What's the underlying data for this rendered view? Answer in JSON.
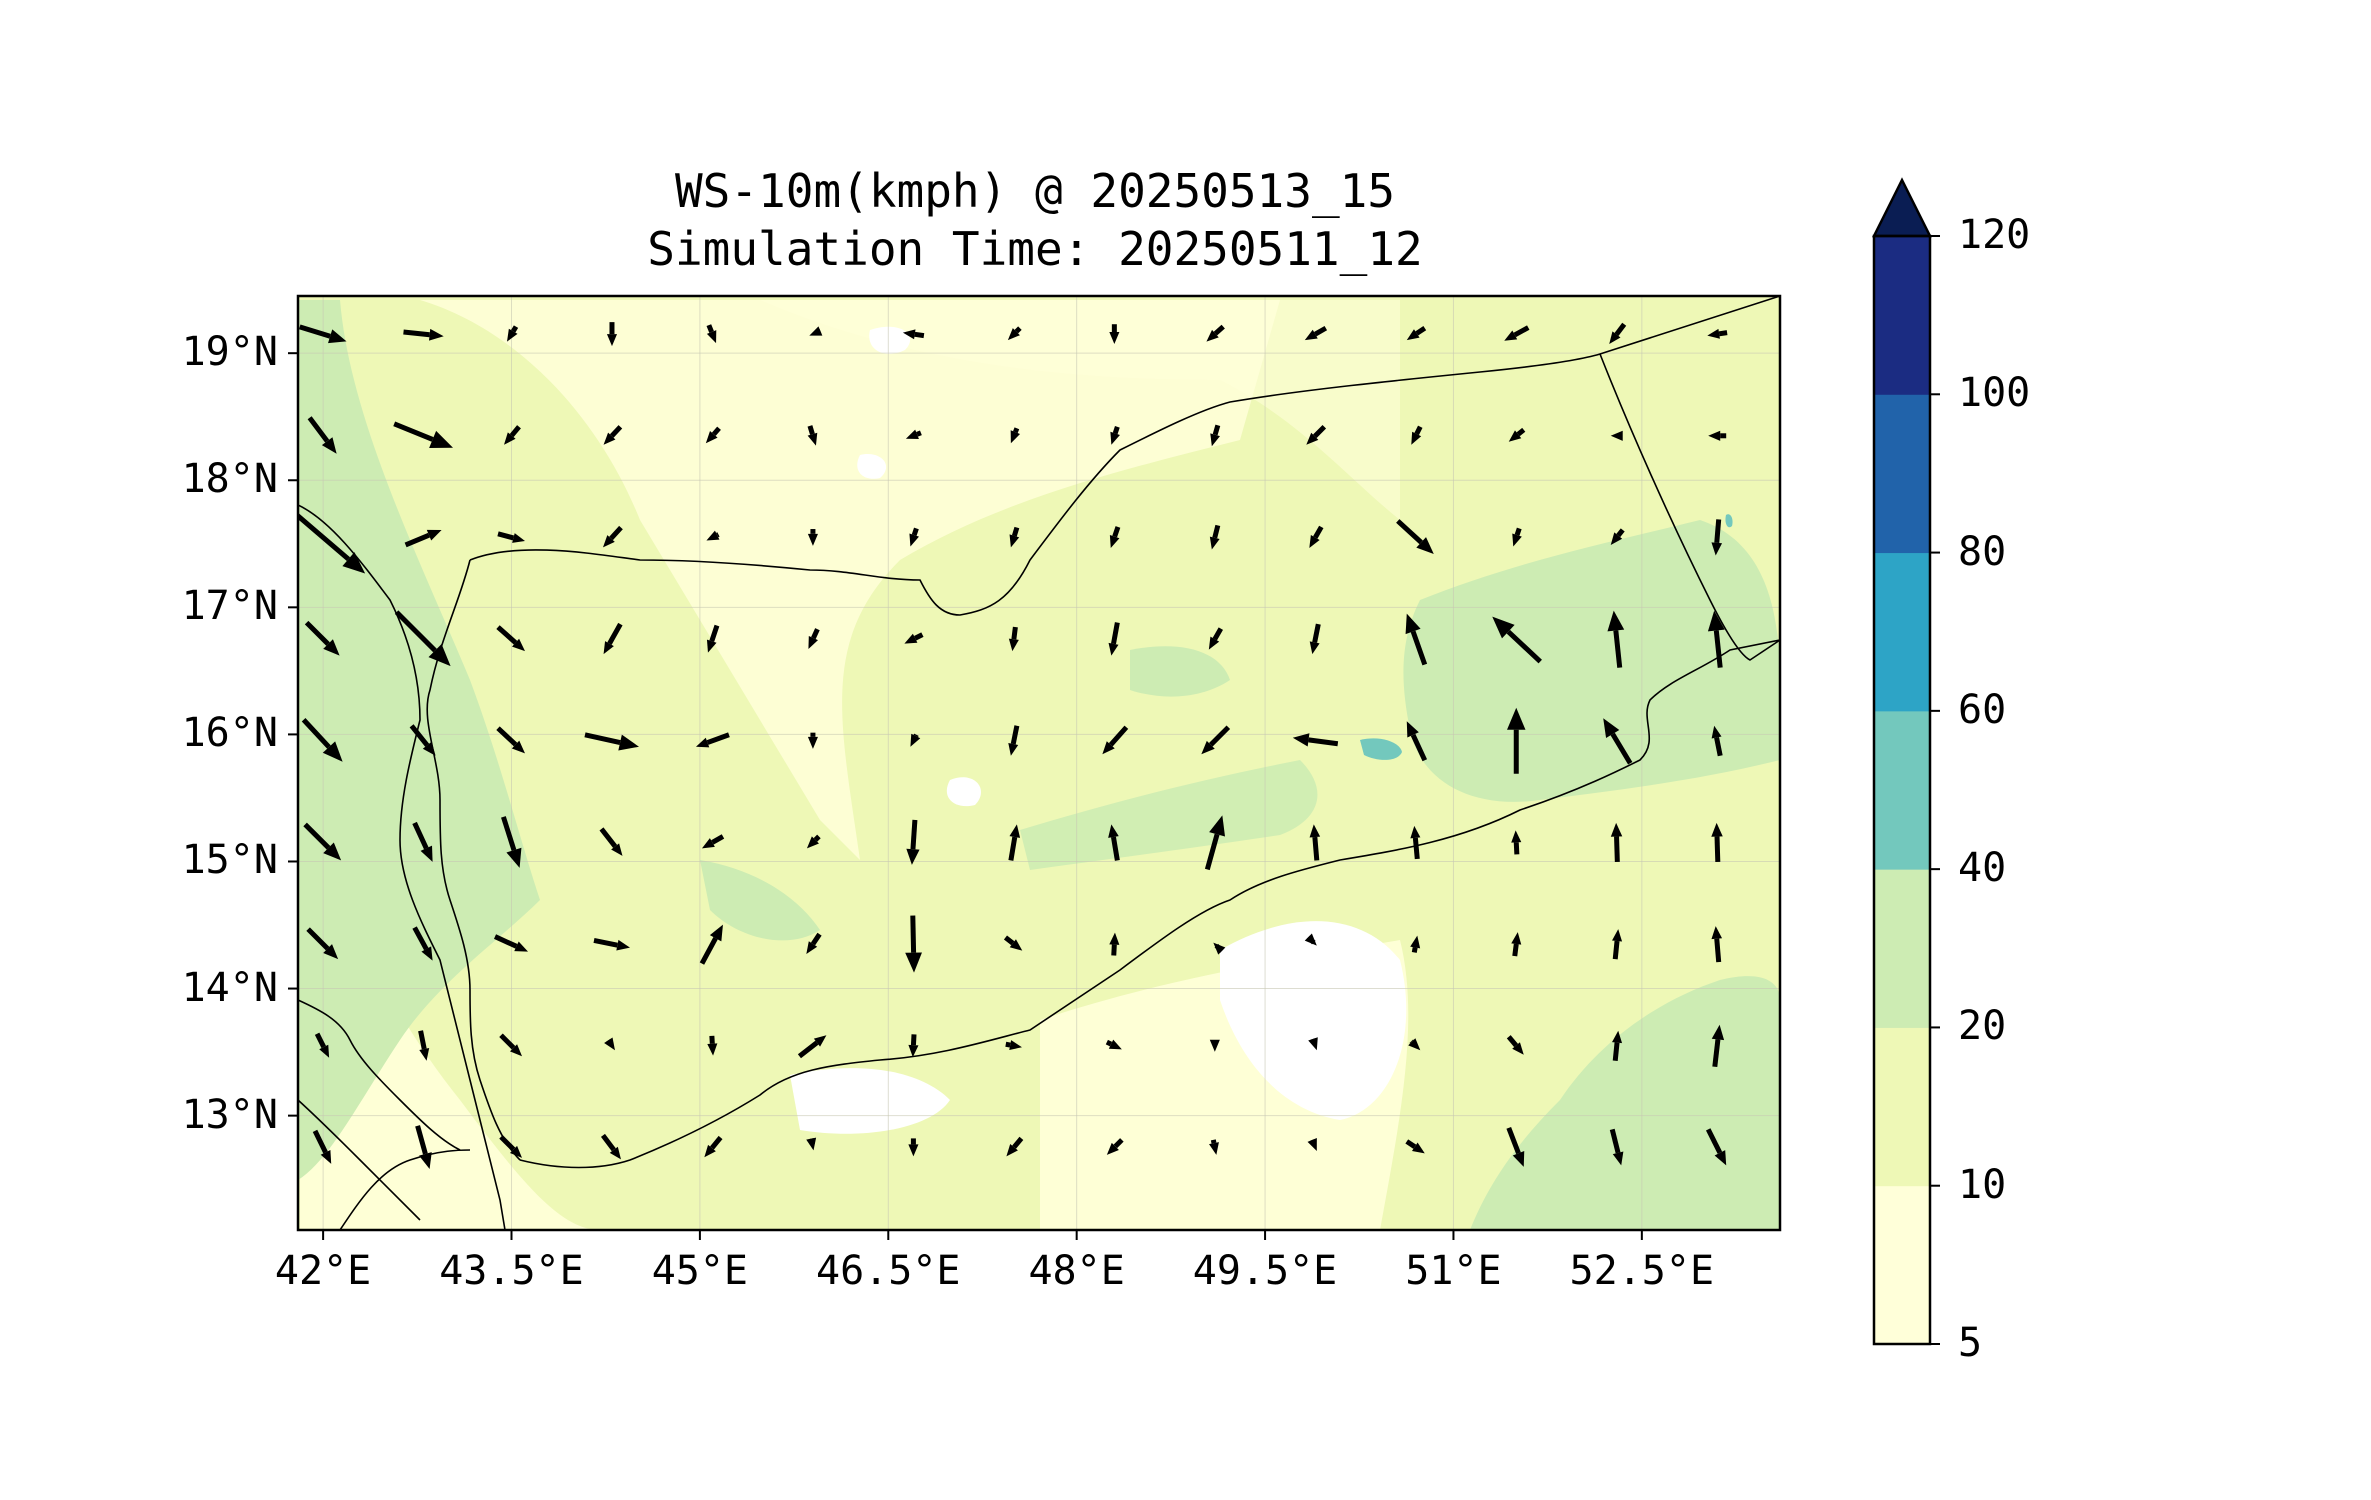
{
  "title": {
    "line1": "WS-10m(kmph) @ 20250513_15",
    "line2": "Simulation Time: 20250511_12"
  },
  "map": {
    "lon_range": [
      41.8,
      53.6
    ],
    "lat_range": [
      12.1,
      19.45
    ],
    "x_ticks": [
      {
        "value": 42.0,
        "label": "42°E"
      },
      {
        "value": 43.5,
        "label": "43.5°E"
      },
      {
        "value": 45.0,
        "label": "45°E"
      },
      {
        "value": 46.5,
        "label": "46.5°E"
      },
      {
        "value": 48.0,
        "label": "48°E"
      },
      {
        "value": 49.5,
        "label": "49.5°E"
      },
      {
        "value": 51.0,
        "label": "51°E"
      },
      {
        "value": 52.5,
        "label": "52.5°E"
      }
    ],
    "y_ticks": [
      {
        "value": 19.0,
        "label": "19°N"
      },
      {
        "value": 18.0,
        "label": "18°N"
      },
      {
        "value": 17.0,
        "label": "17°N"
      },
      {
        "value": 16.0,
        "label": "16°N"
      },
      {
        "value": 15.0,
        "label": "15°N"
      },
      {
        "value": 14.0,
        "label": "14°N"
      },
      {
        "value": 13.0,
        "label": "13°N"
      }
    ],
    "gridlines": true
  },
  "colorbar": {
    "levels": [
      {
        "value": 5,
        "label": "5"
      },
      {
        "value": 10,
        "label": "10"
      },
      {
        "value": 20,
        "label": "20"
      },
      {
        "value": 40,
        "label": "40"
      },
      {
        "value": 60,
        "label": "60"
      },
      {
        "value": 80,
        "label": "80"
      },
      {
        "value": 100,
        "label": "100"
      },
      {
        "value": 120,
        "label": "120"
      }
    ],
    "colors": [
      "#ffffd9",
      "#eef8b6",
      "#cdecb3",
      "#73c8bd",
      "#2da4c6",
      "#2163aa",
      "#1b2c82"
    ],
    "extend_color": "#0a1d53",
    "extend": "max"
  },
  "wind_colors": {
    "white": "#ffffff",
    "pale": "#ffffd9",
    "light": "#eef8b6",
    "green": "#cdecb3",
    "teal": "#73c8bd"
  },
  "wind_vectors": [
    [
      42.0,
      19.15,
      0.78,
      -0.24,
      "#000"
    ],
    [
      42.8,
      19.15,
      0.67,
      -0.07,
      "#000"
    ],
    [
      43.5,
      19.15,
      -0.15,
      -0.25
    ],
    [
      44.3,
      19.15,
      0,
      -0.4
    ],
    [
      45.1,
      19.15,
      0.12,
      -0.3
    ],
    [
      45.9,
      19.15,
      -0.12,
      -0.05
    ],
    [
      46.7,
      19.15,
      -0.35,
      0.05
    ],
    [
      47.5,
      19.15,
      -0.2,
      -0.2
    ],
    [
      48.3,
      19.15,
      0,
      -0.33
    ],
    [
      49.1,
      19.15,
      -0.28,
      -0.25
    ],
    [
      49.9,
      19.15,
      -0.35,
      -0.2
    ],
    [
      50.7,
      19.15,
      -0.3,
      -0.2
    ],
    [
      51.5,
      19.15,
      -0.4,
      -0.22
    ],
    [
      52.3,
      19.15,
      -0.25,
      -0.33
    ],
    [
      53.1,
      19.15,
      -0.33,
      -0.05
    ],
    [
      42.0,
      18.35,
      0.45,
      -0.6
    ],
    [
      42.8,
      18.35,
      0.98,
      -0.4
    ],
    [
      43.5,
      18.35,
      -0.25,
      -0.3
    ],
    [
      44.3,
      18.35,
      -0.28,
      -0.3
    ],
    [
      45.1,
      18.35,
      -0.22,
      -0.25
    ],
    [
      45.9,
      18.35,
      0.1,
      -0.33
    ],
    [
      46.7,
      18.35,
      -0.25,
      -0.1
    ],
    [
      47.5,
      18.35,
      -0.1,
      -0.25
    ],
    [
      48.3,
      18.35,
      -0.1,
      -0.3
    ],
    [
      49.1,
      18.35,
      -0.1,
      -0.35
    ],
    [
      49.9,
      18.35,
      -0.3,
      -0.3
    ],
    [
      50.7,
      18.35,
      -0.15,
      -0.3
    ],
    [
      51.5,
      18.35,
      -0.25,
      -0.2
    ],
    [
      52.3,
      18.35,
      -0.2,
      0.0
    ],
    [
      53.1,
      18.35,
      -0.3,
      0.0
    ],
    [
      42.0,
      17.55,
      1.4,
      -1.2
    ],
    [
      42.8,
      17.55,
      0.6,
      0.25
    ],
    [
      43.5,
      17.55,
      0.45,
      -0.12
    ],
    [
      44.3,
      17.55,
      -0.3,
      -0.33
    ],
    [
      45.1,
      17.55,
      -0.2,
      -0.1
    ],
    [
      45.9,
      17.55,
      0,
      -0.28
    ],
    [
      46.7,
      17.55,
      -0.1,
      -0.3
    ],
    [
      47.5,
      17.55,
      -0.1,
      -0.33
    ],
    [
      48.3,
      17.55,
      -0.12,
      -0.35
    ],
    [
      49.1,
      17.55,
      -0.1,
      -0.4
    ],
    [
      49.9,
      17.55,
      -0.2,
      -0.35
    ],
    [
      50.7,
      17.55,
      0.6,
      -0.55
    ],
    [
      51.5,
      17.55,
      -0.1,
      -0.3
    ],
    [
      52.3,
      17.55,
      -0.2,
      -0.25
    ],
    [
      53.1,
      17.55,
      -0.05,
      -0.6
    ],
    [
      42.0,
      16.75,
      0.55,
      -0.55
    ],
    [
      42.8,
      16.75,
      0.9,
      -0.9
    ],
    [
      43.5,
      16.75,
      0.45,
      -0.4
    ],
    [
      44.3,
      16.75,
      -0.28,
      -0.5
    ],
    [
      45.1,
      16.75,
      -0.15,
      -0.45
    ],
    [
      45.9,
      16.75,
      -0.15,
      -0.33
    ],
    [
      46.7,
      16.75,
      -0.3,
      -0.15
    ],
    [
      47.5,
      16.75,
      -0.05,
      -0.4
    ],
    [
      48.3,
      16.75,
      -0.1,
      -0.55
    ],
    [
      49.1,
      16.75,
      -0.2,
      -0.35
    ],
    [
      49.9,
      16.75,
      -0.1,
      -0.5
    ],
    [
      50.7,
      16.75,
      -0.3,
      0.85
    ],
    [
      51.5,
      16.75,
      -0.8,
      0.75
    ],
    [
      52.3,
      16.75,
      -0.1,
      0.95
    ],
    [
      53.1,
      16.75,
      -0.1,
      0.95
    ],
    [
      42.0,
      15.95,
      0.65,
      -0.7
    ],
    [
      42.8,
      15.95,
      0.4,
      -0.5
    ],
    [
      43.5,
      15.95,
      0.45,
      -0.42
    ],
    [
      44.3,
      15.95,
      0.9,
      -0.2
    ],
    [
      45.1,
      15.95,
      -0.55,
      -0.2
    ],
    [
      45.9,
      15.95,
      0,
      -0.27
    ],
    [
      46.7,
      15.95,
      -0.1,
      -0.2
    ],
    [
      47.5,
      15.95,
      -0.1,
      -0.5
    ],
    [
      48.3,
      15.95,
      -0.4,
      -0.45
    ],
    [
      49.1,
      15.95,
      -0.45,
      -0.45
    ],
    [
      49.9,
      15.95,
      -0.75,
      0.1
    ],
    [
      50.7,
      15.95,
      -0.3,
      0.65
    ],
    [
      51.5,
      15.95,
      0,
      1.1
    ],
    [
      52.3,
      15.95,
      -0.45,
      0.75
    ],
    [
      53.1,
      15.95,
      -0.1,
      0.5
    ],
    [
      42.0,
      15.15,
      0.6,
      -0.6
    ],
    [
      42.8,
      15.15,
      0.3,
      -0.65
    ],
    [
      43.5,
      15.15,
      0.27,
      -0.85
    ],
    [
      44.3,
      15.15,
      0.35,
      -0.45
    ],
    [
      45.1,
      15.15,
      -0.35,
      -0.2
    ],
    [
      45.9,
      15.15,
      -0.2,
      -0.2
    ],
    [
      46.7,
      15.15,
      -0.05,
      -0.75
    ],
    [
      47.5,
      15.15,
      0.1,
      0.6
    ],
    [
      48.3,
      15.15,
      -0.1,
      0.6
    ],
    [
      49.1,
      15.15,
      0.25,
      0.9
    ],
    [
      49.9,
      15.15,
      -0.05,
      0.6
    ],
    [
      50.7,
      15.15,
      -0.05,
      0.55
    ],
    [
      51.5,
      15.15,
      -0.02,
      0.4
    ],
    [
      52.3,
      15.15,
      -0.02,
      0.65
    ],
    [
      53.1,
      15.15,
      -0.02,
      0.65
    ],
    [
      42.0,
      14.35,
      0.5,
      -0.5
    ],
    [
      42.8,
      14.35,
      0.3,
      -0.55
    ],
    [
      43.5,
      14.35,
      0.55,
      -0.25
    ],
    [
      44.3,
      14.35,
      0.6,
      -0.12
    ],
    [
      45.1,
      14.35,
      0.35,
      0.65
    ],
    [
      45.9,
      14.35,
      -0.22,
      -0.33
    ],
    [
      46.7,
      14.35,
      0.02,
      -0.95
    ],
    [
      47.5,
      14.35,
      0.28,
      -0.22
    ],
    [
      48.3,
      14.35,
      0.02,
      0.38
    ],
    [
      49.1,
      14.35,
      -0.05,
      0.05
    ],
    [
      49.9,
      14.35,
      0.05,
      -0.05
    ],
    [
      50.7,
      14.35,
      0.05,
      0.28
    ],
    [
      51.5,
      14.35,
      0.05,
      0.4
    ],
    [
      52.3,
      14.35,
      0.05,
      0.5
    ],
    [
      53.1,
      14.35,
      -0.05,
      0.6
    ],
    [
      42.0,
      13.55,
      0.2,
      -0.4
    ],
    [
      42.8,
      13.55,
      0.1,
      -0.5
    ],
    [
      43.5,
      13.55,
      0.35,
      -0.35
    ],
    [
      44.3,
      13.55,
      0.1,
      -0.15
    ],
    [
      45.1,
      13.55,
      0.02,
      -0.33
    ],
    [
      45.9,
      13.55,
      0.45,
      0.35
    ],
    [
      46.7,
      13.55,
      -0.02,
      -0.38
    ],
    [
      47.5,
      13.55,
      0.27,
      -0.05
    ],
    [
      48.3,
      13.55,
      0.25,
      -0.12
    ],
    [
      49.1,
      13.55,
      0,
      -0.2
    ],
    [
      49.9,
      13.55,
      0.05,
      -0.15
    ],
    [
      50.7,
      13.55,
      0.15,
      -0.15
    ],
    [
      51.5,
      13.55,
      0.25,
      -0.3
    ],
    [
      52.3,
      13.55,
      0.05,
      0.5
    ],
    [
      53.1,
      13.55,
      0.08,
      0.7
    ],
    [
      42.0,
      12.75,
      0.27,
      -0.55
    ],
    [
      42.8,
      12.75,
      0.2,
      -0.72
    ],
    [
      43.5,
      12.75,
      0.35,
      -0.35
    ],
    [
      44.3,
      12.75,
      0.3,
      -0.4
    ],
    [
      45.1,
      12.75,
      -0.27,
      -0.33
    ],
    [
      45.9,
      12.75,
      0.02,
      -0.1
    ],
    [
      46.7,
      12.75,
      0,
      -0.3
    ],
    [
      47.5,
      12.75,
      -0.25,
      -0.3
    ],
    [
      48.3,
      12.75,
      -0.25,
      -0.25
    ],
    [
      49.1,
      12.75,
      0.05,
      -0.25
    ],
    [
      49.9,
      12.75,
      0.05,
      -0.12
    ],
    [
      50.7,
      12.75,
      0.3,
      -0.2
    ],
    [
      51.5,
      12.75,
      0.25,
      -0.65
    ],
    [
      52.3,
      12.75,
      0.15,
      -0.6
    ],
    [
      53.1,
      12.75,
      0.3,
      -0.6
    ]
  ]
}
